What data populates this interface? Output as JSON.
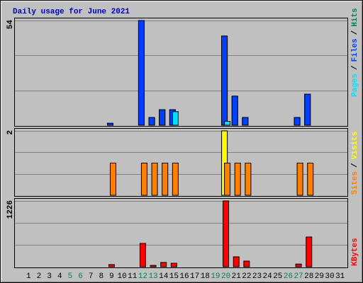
{
  "chart_data": {
    "type": "bar",
    "title": "Daily usage for June 2021",
    "title_color": "#0000c0",
    "categories": [
      "1",
      "2",
      "3",
      "4",
      "5",
      "6",
      "7",
      "8",
      "9",
      "10",
      "11",
      "12",
      "13",
      "14",
      "15",
      "16",
      "17",
      "18",
      "19",
      "20",
      "21",
      "22",
      "23",
      "24",
      "25",
      "26",
      "27",
      "28",
      "29",
      "30",
      "31"
    ],
    "label_colors": [
      "#000000",
      "#000000",
      "#000000",
      "#000000",
      "#00805c",
      "#00805c",
      "#000000",
      "#000000",
      "#000000",
      "#000000",
      "#000000",
      "#00805c",
      "#00805c",
      "#000000",
      "#000000",
      "#000000",
      "#000000",
      "#000000",
      "#00805c",
      "#00805c",
      "#000000",
      "#000000",
      "#000000",
      "#000000",
      "#000000",
      "#00805c",
      "#00805c",
      "#000000",
      "#000000",
      "#000000",
      "#000000"
    ],
    "legend_separator": "/",
    "grid_divisions": 3,
    "panels": [
      {
        "ylim": [
          0,
          54
        ],
        "yticks": [
          54
        ],
        "series": [
          {
            "name": "Hits",
            "color": "#00805c",
            "values": [
              0,
              0,
              0,
              0,
              0,
              0,
              0,
              0,
              1,
              0,
              0,
              54,
              4,
              8,
              8,
              0,
              0,
              0,
              0,
              46,
              15,
              4,
              0,
              0,
              0,
              0,
              4,
              16,
              0,
              0,
              0
            ]
          },
          {
            "name": "Files",
            "color": "#0040ff",
            "values": [
              0,
              0,
              0,
              0,
              0,
              0,
              0,
              0,
              1,
              0,
              0,
              54,
              4,
              8,
              8,
              0,
              0,
              0,
              0,
              46,
              15,
              4,
              0,
              0,
              0,
              0,
              4,
              16,
              0,
              0,
              0
            ]
          },
          {
            "name": "Pages",
            "color": "#00e0ff",
            "values": [
              0,
              0,
              0,
              0,
              0,
              0,
              0,
              0,
              0,
              0,
              0,
              0,
              0,
              0,
              7,
              0,
              0,
              0,
              0,
              2,
              0,
              0,
              0,
              0,
              0,
              0,
              0,
              0,
              0,
              0,
              0
            ]
          }
        ]
      },
      {
        "ylim": [
          0,
          2
        ],
        "yticks": [
          2
        ],
        "series": [
          {
            "name": "Visits",
            "color": "#ffff00",
            "values": [
              0,
              0,
              0,
              0,
              0,
              0,
              0,
              0,
              0,
              0,
              0,
              0,
              0,
              0,
              0,
              0,
              0,
              0,
              0,
              2,
              0,
              0,
              0,
              0,
              0,
              0,
              0,
              0,
              0,
              0,
              0
            ]
          },
          {
            "name": "Sites",
            "color": "#ff8000",
            "values": [
              0,
              0,
              0,
              0,
              0,
              0,
              0,
              0,
              1,
              0,
              0,
              1,
              1,
              1,
              1,
              0,
              0,
              0,
              0,
              1,
              1,
              1,
              0,
              0,
              0,
              0,
              1,
              1,
              0,
              0,
              0
            ]
          }
        ]
      },
      {
        "ylim": [
          0,
          1226
        ],
        "yticks": [
          1226
        ],
        "series": [
          {
            "name": "KBytes",
            "color": "#ff0000",
            "values": [
              0,
              0,
              0,
              0,
              0,
              0,
              0,
              0,
              40,
              0,
              0,
              435,
              25,
              80,
              65,
              0,
              0,
              0,
              0,
              1226,
              185,
              105,
              0,
              0,
              0,
              0,
              50,
              554,
              0,
              0,
              0
            ]
          }
        ]
      }
    ]
  }
}
